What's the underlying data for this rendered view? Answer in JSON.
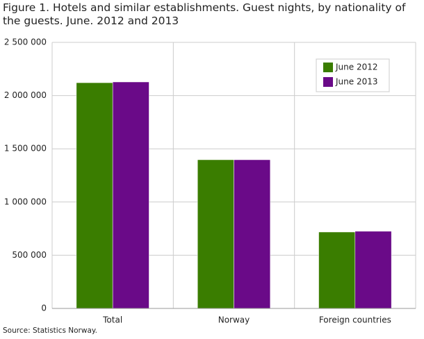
{
  "chart_data": {
    "type": "bar",
    "title": "Figure 1. Hotels and similar establishments. Guest nights, by nationality of the guests. June. 2012 and 2013",
    "categories": [
      "Total",
      "Norway",
      "Foreign countries"
    ],
    "series": [
      {
        "name": "June 2012",
        "color": "#3a7d00",
        "values": [
          2121000,
          1397000,
          718000
        ]
      },
      {
        "name": "June 2013",
        "color": "#6a0a88",
        "values": [
          2128000,
          1397000,
          725000
        ]
      }
    ],
    "ylim": [
      0,
      2500000
    ],
    "yticks": [
      0,
      {
        "value": 500000,
        "label": "500 000"
      },
      {
        "value": 1000000,
        "label": "1 000 000"
      },
      {
        "value": 1500000,
        "label": "1 500 000"
      },
      {
        "value": 2000000,
        "label": "2 000 000"
      },
      {
        "value": 2500000,
        "label": "2 500 000"
      }
    ],
    "grid": true,
    "legend": "upper right",
    "source": "Source: Statistics Norway."
  }
}
